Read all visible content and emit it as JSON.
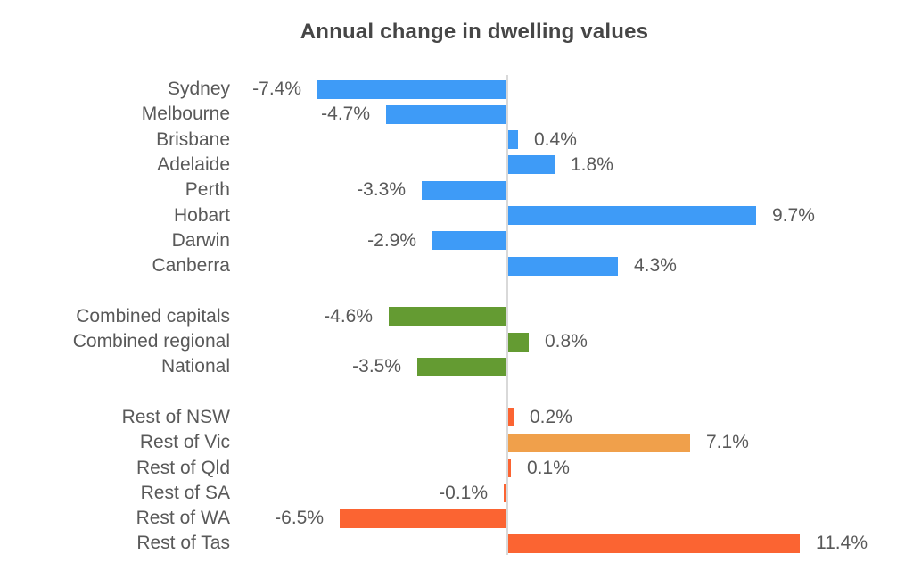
{
  "chart_data": {
    "type": "bar",
    "orientation": "horizontal",
    "title": "Annual change in dwelling values",
    "value_unit": "%",
    "xlim": [
      -8.5,
      13
    ],
    "grid": false,
    "legend": "none",
    "zero_axis_color": "#D9D9D9",
    "label_color": "#595959",
    "title_color": "#464646",
    "groups": [
      {
        "name": "capital-cities",
        "color": "#3E9BF7",
        "items": [
          {
            "label": "Sydney",
            "value": -7.4,
            "display": "-7.4%"
          },
          {
            "label": "Melbourne",
            "value": -4.7,
            "display": "-4.7%"
          },
          {
            "label": "Brisbane",
            "value": 0.4,
            "display": "0.4%"
          },
          {
            "label": "Adelaide",
            "value": 1.8,
            "display": "1.8%"
          },
          {
            "label": "Perth",
            "value": -3.3,
            "display": "-3.3%"
          },
          {
            "label": "Hobart",
            "value": 9.7,
            "display": "9.7%"
          },
          {
            "label": "Darwin",
            "value": -2.9,
            "display": "-2.9%"
          },
          {
            "label": "Canberra",
            "value": 4.3,
            "display": "4.3%"
          }
        ]
      },
      {
        "name": "aggregates",
        "color": "#649B32",
        "items": [
          {
            "label": "Combined capitals",
            "value": -4.6,
            "display": "-4.6%"
          },
          {
            "label": "Combined regional",
            "value": 0.8,
            "display": "0.8%"
          },
          {
            "label": "National",
            "value": -3.5,
            "display": "-3.5%"
          }
        ]
      },
      {
        "name": "regional-areas",
        "color": "#FB6432",
        "items": [
          {
            "label": "Rest of NSW",
            "value": 0.2,
            "display": "0.2%"
          },
          {
            "label": "Rest of Vic",
            "value": 7.1,
            "display": "7.1%",
            "color": "#F0A04B"
          },
          {
            "label": "Rest of Qld",
            "value": 0.1,
            "display": "0.1%"
          },
          {
            "label": "Rest of SA",
            "value": -0.1,
            "display": "-0.1%"
          },
          {
            "label": "Rest of WA",
            "value": -6.5,
            "display": "-6.5%"
          },
          {
            "label": "Rest of Tas",
            "value": 11.4,
            "display": "11.4%"
          }
        ]
      }
    ]
  }
}
